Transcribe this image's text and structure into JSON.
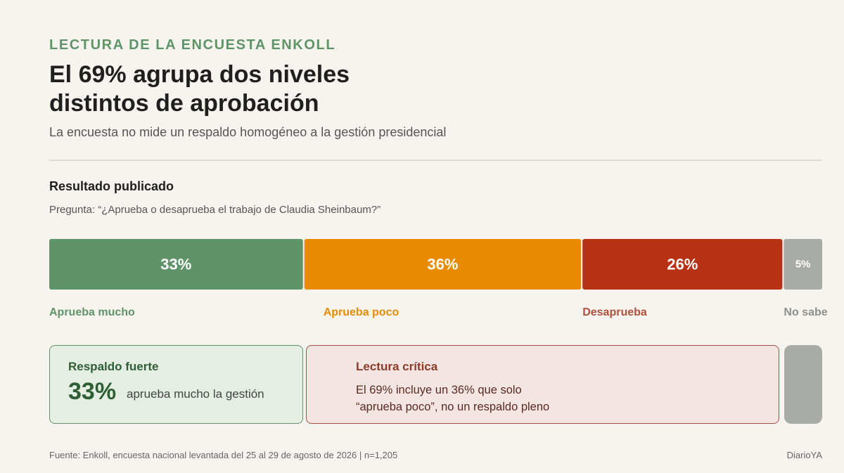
{
  "kicker": "LECTURA DE LA ENCUESTA ENKOLL",
  "title_line1": "El 69% agrupa dos niveles",
  "title_line2": "distintos de aprobación",
  "subtitle": "La encuesta no mide un respaldo homogéneo a la gestión presidencial",
  "section_title": "Resultado publicado",
  "question": "Pregunta: “¿Aprueba o desaprueba el trabajo de Claudia Sheinbaum?”",
  "chart_data": {
    "type": "bar",
    "orientation": "horizontal-stacked",
    "unit": "%",
    "categories": [
      "Aprueba mucho",
      "Aprueba poco",
      "Desaprueba",
      "No sabe"
    ],
    "values": [
      33,
      36,
      26,
      5
    ],
    "value_labels": [
      "33%",
      "36%",
      "26%",
      "5%"
    ],
    "colors": [
      "#5f9468",
      "#e88b00",
      "#b83112",
      "#a9aca6"
    ],
    "label_colors": [
      "#5f9468",
      "#e88b00",
      "#b0503a",
      "#8e908b"
    ]
  },
  "cards": {
    "strong": {
      "title": "Respaldo fuerte",
      "value": "33%",
      "description": "aprueba mucho la gestión"
    },
    "critical": {
      "title": "Lectura crítica",
      "line1": "El 69% incluye un 36% que solo",
      "line2": "“aprueba poco”, no un respaldo pleno"
    }
  },
  "footer": "Fuente: Enkoll, encuesta nacional levantada del 25 al 29 de agosto de 2026 | n=1,205",
  "brand": "DiarioYA"
}
